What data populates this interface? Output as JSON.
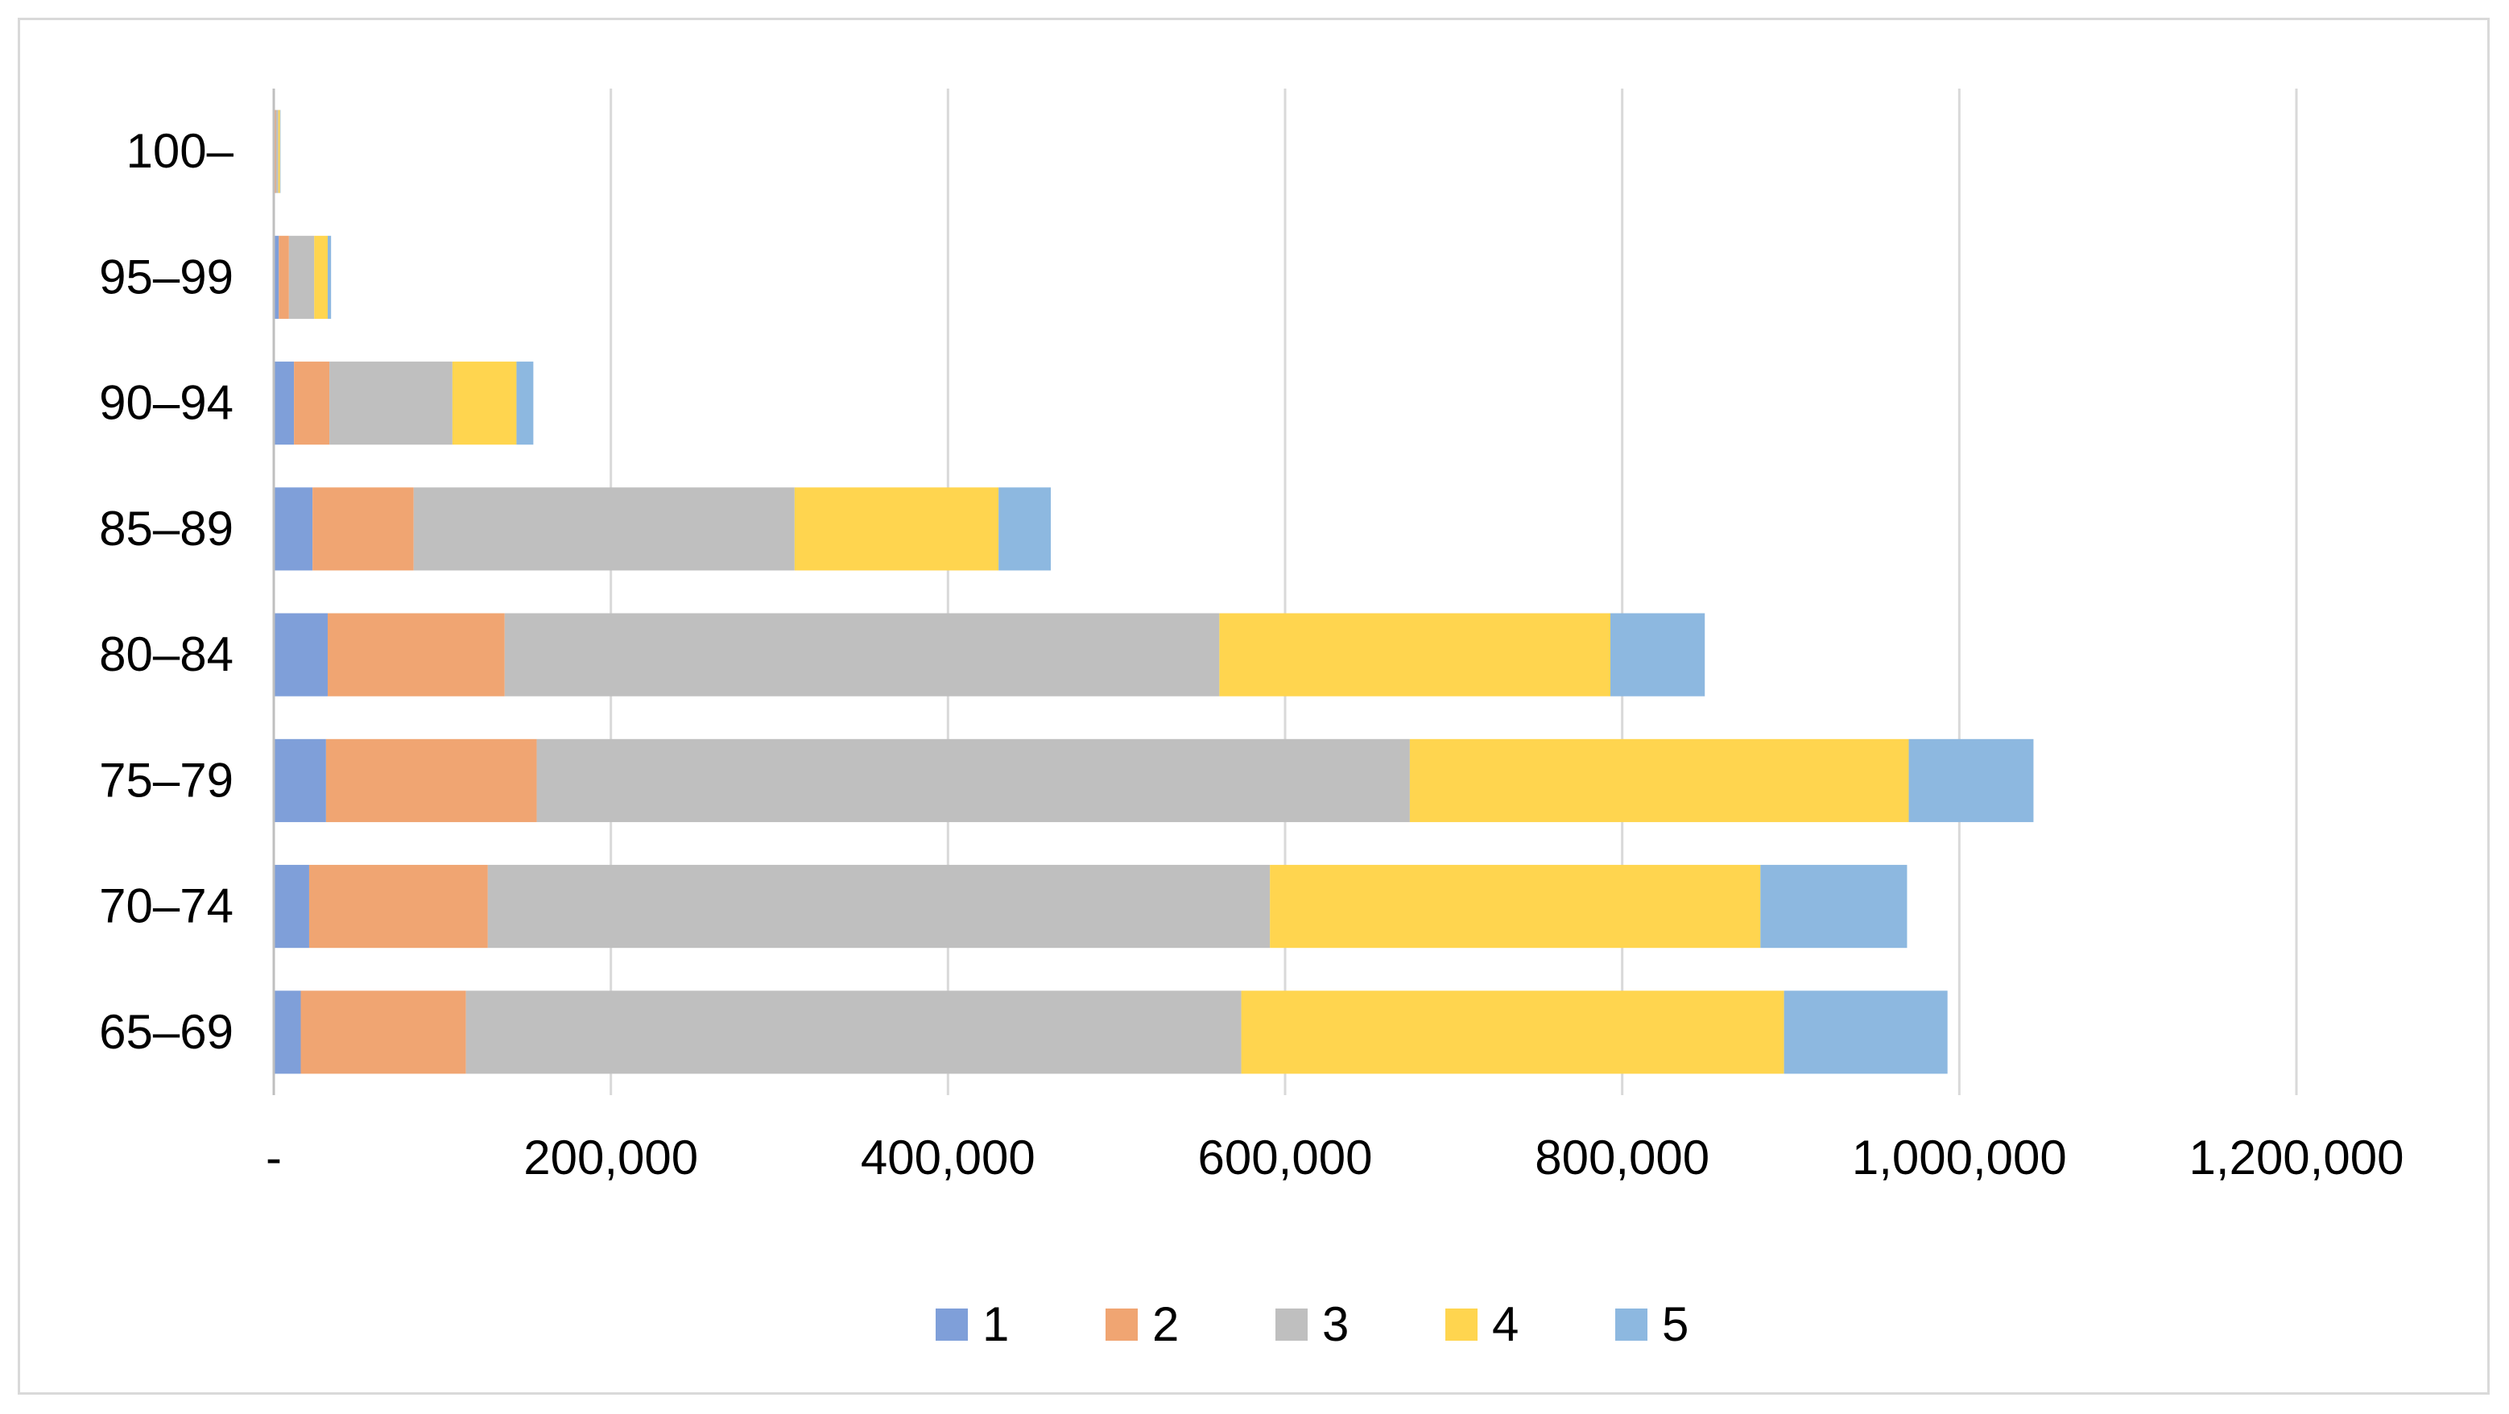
{
  "chart_data": {
    "type": "bar",
    "orientation": "horizontal",
    "stacked": true,
    "title": "",
    "xlabel": "",
    "ylabel": "",
    "categories": [
      "65–69",
      "70–74",
      "75–79",
      "80–84",
      "85–89",
      "90–94",
      "95–99",
      "100–"
    ],
    "series": [
      {
        "name": "1",
        "color": "#7F9FD9",
        "values": [
          16000,
          21000,
          31000,
          32000,
          23000,
          12000,
          3000,
          500
        ]
      },
      {
        "name": "2",
        "color": "#F0A572",
        "values": [
          98000,
          106000,
          125000,
          105000,
          60000,
          21000,
          6000,
          700
        ]
      },
      {
        "name": "3",
        "color": "#BFBFBF",
        "values": [
          460000,
          464000,
          518000,
          424000,
          226000,
          73000,
          15000,
          1500
        ]
      },
      {
        "name": "4",
        "color": "#FFD54F",
        "values": [
          322000,
          291000,
          296000,
          232000,
          121000,
          38000,
          8000,
          1000
        ]
      },
      {
        "name": "5",
        "color": "#8DB8E0",
        "values": [
          97000,
          87000,
          74000,
          56000,
          31000,
          10000,
          2000,
          300
        ]
      }
    ],
    "xlim": [
      0,
      1200000
    ],
    "xticks": [
      0,
      200000,
      400000,
      600000,
      800000,
      1000000,
      1200000
    ],
    "xtick_labels": [
      "-",
      "200,000",
      "400,000",
      "600,000",
      "800,000",
      "1,000,000",
      "1,200,000"
    ],
    "grid": true,
    "legend_position": "bottom"
  }
}
